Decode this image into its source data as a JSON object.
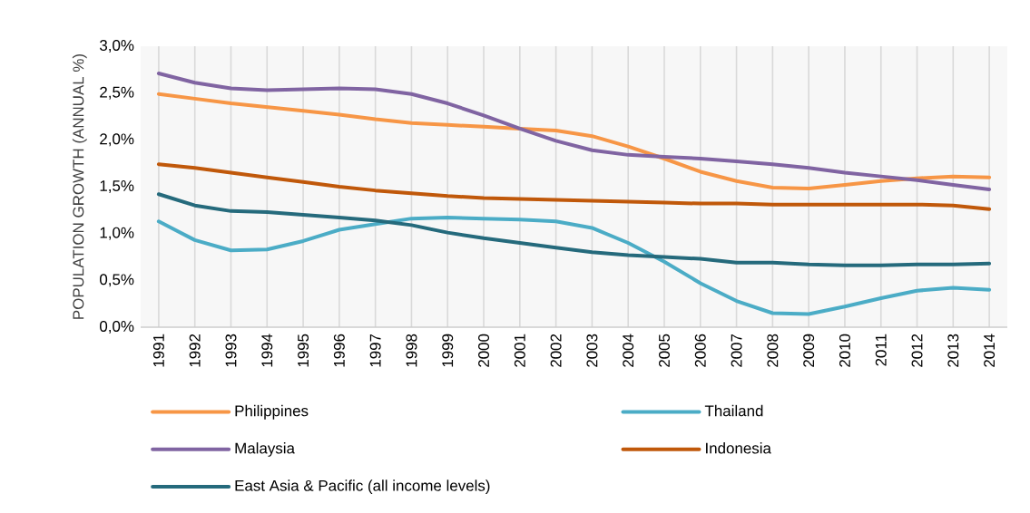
{
  "chart_data": {
    "type": "line",
    "ylabel": "POPULATION GROWTH (ANNUAL %)",
    "categories": [
      "1991",
      "1992",
      "1993",
      "1994",
      "1995",
      "1996",
      "1997",
      "1998",
      "1999",
      "2000",
      "2001",
      "2002",
      "2003",
      "2004",
      "2005",
      "2006",
      "2007",
      "2008",
      "2009",
      "2010",
      "2011",
      "2012",
      "2013",
      "2014"
    ],
    "series": [
      {
        "name": "Philippines",
        "color": "#f79646",
        "values": [
          2.49,
          2.44,
          2.39,
          2.35,
          2.31,
          2.27,
          2.22,
          2.18,
          2.16,
          2.14,
          2.12,
          2.1,
          2.04,
          1.93,
          1.8,
          1.66,
          1.56,
          1.49,
          1.48,
          1.52,
          1.56,
          1.59,
          1.61,
          1.6
        ]
      },
      {
        "name": "Thailand",
        "color": "#4bacc6",
        "values": [
          1.13,
          0.93,
          0.82,
          0.83,
          0.92,
          1.04,
          1.1,
          1.16,
          1.17,
          1.16,
          1.15,
          1.13,
          1.06,
          0.9,
          0.7,
          0.47,
          0.28,
          0.15,
          0.14,
          0.22,
          0.31,
          0.39,
          0.42,
          0.4
        ]
      },
      {
        "name": "Malaysia",
        "color": "#8064a2",
        "values": [
          2.71,
          2.61,
          2.55,
          2.53,
          2.54,
          2.55,
          2.54,
          2.49,
          2.39,
          2.26,
          2.12,
          1.99,
          1.89,
          1.84,
          1.82,
          1.8,
          1.77,
          1.74,
          1.7,
          1.65,
          1.61,
          1.57,
          1.52,
          1.47
        ]
      },
      {
        "name": "Indonesia",
        "color": "#c0580a",
        "values": [
          1.74,
          1.7,
          1.65,
          1.6,
          1.55,
          1.5,
          1.46,
          1.43,
          1.4,
          1.38,
          1.37,
          1.36,
          1.35,
          1.34,
          1.33,
          1.32,
          1.32,
          1.31,
          1.31,
          1.31,
          1.31,
          1.31,
          1.3,
          1.26
        ]
      },
      {
        "name": "East Asia & Pacific (all income levels)",
        "color": "#256a7c",
        "values": [
          1.42,
          1.3,
          1.24,
          1.23,
          1.2,
          1.17,
          1.14,
          1.09,
          1.01,
          0.95,
          0.9,
          0.85,
          0.8,
          0.77,
          0.75,
          0.73,
          0.69,
          0.69,
          0.67,
          0.66,
          0.66,
          0.67,
          0.67,
          0.68
        ]
      }
    ],
    "ylim": [
      0,
      3
    ],
    "yticks": [
      {
        "value": 0,
        "label": "0,0%"
      },
      {
        "value": 0.5,
        "label": "0,5%"
      },
      {
        "value": 1,
        "label": "1,0%"
      },
      {
        "value": 1.5,
        "label": "1,5%"
      },
      {
        "value": 2,
        "label": "2,0%"
      },
      {
        "value": 2.5,
        "label": "2,5%"
      },
      {
        "value": 3,
        "label": "3,0%"
      }
    ],
    "grid": "x",
    "legend": "bottom"
  }
}
